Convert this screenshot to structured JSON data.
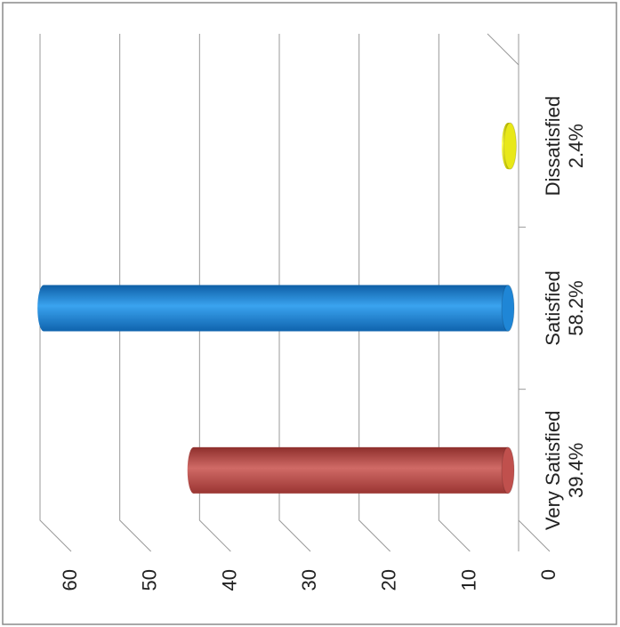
{
  "chart_data": {
    "type": "bar",
    "orientation": "horizontal-3d-cylinder",
    "rotation": "rotated 90 degrees clockwise",
    "categories": [
      "Very Satisfied",
      "Satisfied",
      "Dissatisfied"
    ],
    "category_labels": [
      {
        "name": "Very Satisfied",
        "pct": "39.4%"
      },
      {
        "name": "Satisfied",
        "pct": "58.2%"
      },
      {
        "name": "Dissatisfied",
        "pct": "2.4%"
      }
    ],
    "values": [
      39.4,
      58.2,
      2.4
    ],
    "colors": [
      "#c0504d",
      "#1f86d6",
      "#e8e818"
    ],
    "xlim": [
      0,
      60
    ],
    "ticks": [
      0,
      10,
      20,
      30,
      40,
      50,
      60
    ],
    "tick_labels": [
      "0",
      "10",
      "20",
      "30",
      "40",
      "50",
      "60"
    ],
    "grid": true,
    "title": "",
    "xlabel": "",
    "ylabel": ""
  }
}
